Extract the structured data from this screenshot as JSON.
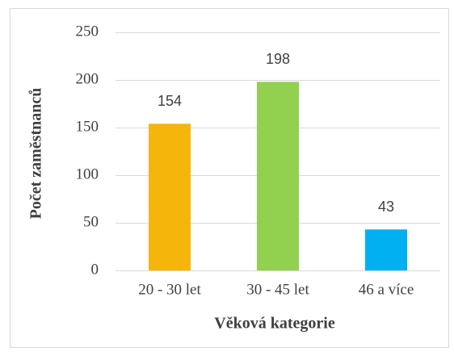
{
  "chart_data": {
    "type": "bar",
    "categories": [
      "20 - 30 let",
      "30 - 45 let",
      "46 a více"
    ],
    "values": [
      154,
      198,
      43
    ],
    "colors": [
      "#f5b50a",
      "#92d050",
      "#00b0f0"
    ],
    "xlabel": "Věková kategorie",
    "ylabel": "Počet zaměstnanců",
    "ylim": [
      0,
      250
    ],
    "yticks": [
      0,
      50,
      100,
      150,
      200,
      250
    ],
    "grid": true
  }
}
